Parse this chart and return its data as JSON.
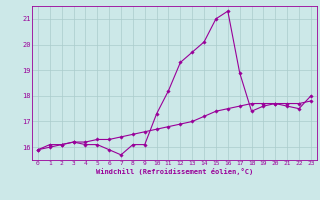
{
  "xlabel": "Windchill (Refroidissement éolien,°C)",
  "background_color": "#cce8e8",
  "grid_color": "#aacccc",
  "line_color": "#990099",
  "x_series1": [
    0,
    1,
    2,
    3,
    4,
    5,
    6,
    7,
    8,
    9,
    10,
    11,
    12,
    13,
    14,
    15,
    16,
    17,
    18,
    19,
    20,
    21,
    22,
    23
  ],
  "y_series1": [
    15.9,
    16.1,
    16.1,
    16.2,
    16.1,
    16.1,
    15.9,
    15.7,
    16.1,
    16.1,
    17.3,
    18.2,
    19.3,
    19.7,
    20.1,
    21.0,
    21.3,
    18.9,
    17.4,
    17.6,
    17.7,
    17.6,
    17.5,
    18.0
  ],
  "x_series2": [
    0,
    1,
    2,
    3,
    4,
    5,
    6,
    7,
    8,
    9,
    10,
    11,
    12,
    13,
    14,
    15,
    16,
    17,
    18,
    19,
    20,
    21,
    22,
    23
  ],
  "y_series2": [
    15.9,
    16.0,
    16.1,
    16.2,
    16.2,
    16.3,
    16.3,
    16.4,
    16.5,
    16.6,
    16.7,
    16.8,
    16.9,
    17.0,
    17.2,
    17.4,
    17.5,
    17.6,
    17.7,
    17.7,
    17.7,
    17.7,
    17.7,
    17.8
  ],
  "ylim": [
    15.5,
    21.5
  ],
  "yticks": [
    16,
    17,
    18,
    19,
    20,
    21
  ],
  "xticks": [
    0,
    1,
    2,
    3,
    4,
    5,
    6,
    7,
    8,
    9,
    10,
    11,
    12,
    13,
    14,
    15,
    16,
    17,
    18,
    19,
    20,
    21,
    22,
    23
  ],
  "marker": "D",
  "markersize": 1.8,
  "linewidth": 0.8,
  "tick_fontsize": 4.5,
  "xlabel_fontsize": 5.0
}
